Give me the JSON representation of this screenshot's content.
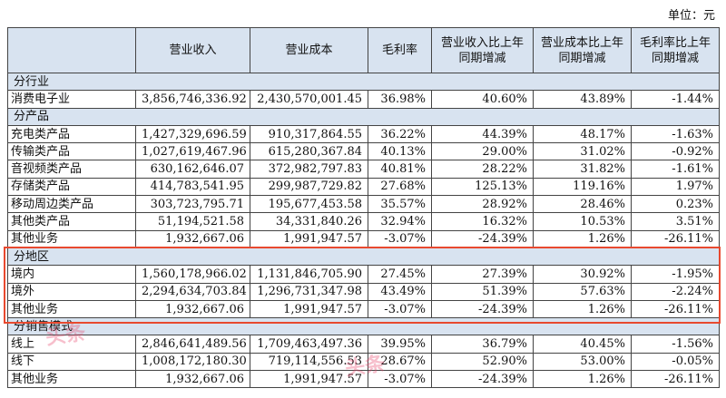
{
  "unit": "单位：元",
  "headers": [
    "",
    "营业收入",
    "营业成本",
    "毛利率",
    "营业收入比上年同期增减",
    "营业成本比上年同期增减",
    "毛利率比上年同期增减"
  ],
  "sections": [
    {
      "title": "分行业",
      "rows": [
        [
          "消费电子业",
          "3,856,746,336.92",
          "2,430,570,001.45",
          "36.98%",
          "40.60%",
          "43.89%",
          "-1.44%"
        ]
      ]
    },
    {
      "title": "分产品",
      "rows": [
        [
          "充电类产品",
          "1,427,329,696.59",
          "910,317,864.55",
          "36.22%",
          "44.39%",
          "48.17%",
          "-1.63%"
        ],
        [
          "传输类产品",
          "1,027,619,467.96",
          "615,280,367.84",
          "40.13%",
          "29.00%",
          "31.02%",
          "-0.92%"
        ],
        [
          "音视频类产品",
          "630,162,646.07",
          "372,982,797.83",
          "40.81%",
          "28.22%",
          "31.82%",
          "-1.61%"
        ],
        [
          "存储类产品",
          "414,783,541.95",
          "299,987,729.82",
          "27.68%",
          "125.13%",
          "119.16%",
          "1.97%"
        ],
        [
          "移动周边类产品",
          "303,723,795.71",
          "195,677,453.58",
          "35.57%",
          "28.92%",
          "28.46%",
          "0.23%"
        ],
        [
          "其他类产品",
          "51,194,521.58",
          "34,331,840.26",
          "32.94%",
          "16.32%",
          "10.53%",
          "3.51%"
        ],
        [
          "其他业务",
          "1,932,667.06",
          "1,991,947.57",
          "-3.07%",
          "-24.39%",
          "1.26%",
          "-26.11%"
        ]
      ]
    },
    {
      "title": "分地区",
      "rows": [
        [
          "境内",
          "1,560,178,966.02",
          "1,131,846,705.90",
          "27.45%",
          "27.39%",
          "30.92%",
          "-1.95%"
        ],
        [
          "境外",
          "2,294,634,703.84",
          "1,296,731,347.98",
          "43.49%",
          "51.39%",
          "57.63%",
          "-2.24%"
        ],
        [
          "其他业务",
          "1,932,667.06",
          "1,991,947.57",
          "-3.07%",
          "-24.39%",
          "1.26%",
          "-26.11%"
        ]
      ]
    },
    {
      "title": "分销售模式",
      "rows": [
        [
          "线上",
          "2,846,641,489.56",
          "1,709,463,497.36",
          "39.95%",
          "36.79%",
          "40.45%",
          "-1.56%"
        ],
        [
          "线下",
          "1,008,172,180.30",
          "719,114,556.53",
          "28.67%",
          "52.90%",
          "53.00%",
          "-0.05%"
        ],
        [
          "其他业务",
          "1,932,667.06",
          "1,991,947.57",
          "-3.07%",
          "-24.39%",
          "1.26%",
          "-26.11%"
        ]
      ]
    }
  ],
  "highlight_color": "#e8492f",
  "header_bg": "#d8e3f0"
}
